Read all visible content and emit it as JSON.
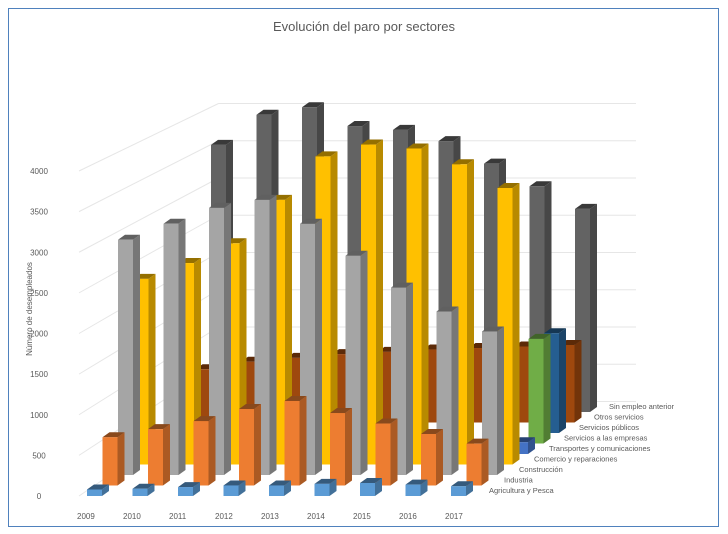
{
  "chart_data": {
    "type": "bar",
    "subtype": "3d-column-depth",
    "title": "Evolución del paro por sectores",
    "ylabel": "Número de desempleados",
    "xlabel": "",
    "ylim": [
      0,
      4000
    ],
    "yticks": [
      0,
      500,
      1000,
      1500,
      2000,
      2500,
      3000,
      3500,
      4000
    ],
    "categories": [
      "2009",
      "2010",
      "2011",
      "2012",
      "2013",
      "2014",
      "2015",
      "2016",
      "2017"
    ],
    "grid": true,
    "series": [
      {
        "name": "Agricultura y Pesca",
        "color": "#5b9bd5",
        "values": [
          80,
          90,
          110,
          130,
          130,
          150,
          160,
          140,
          120
        ]
      },
      {
        "name": "Industria",
        "color": "#ed7d31",
        "values": [
          600,
          700,
          800,
          950,
          1050,
          900,
          770,
          640,
          520
        ]
      },
      {
        "name": "Construcción",
        "color": "#a5a5a5",
        "values": [
          2950,
          3150,
          3350,
          3450,
          3150,
          2750,
          2350,
          2050,
          1800
        ]
      },
      {
        "name": "Comercio y reparaciones",
        "color": "#ffc000",
        "values": [
          2350,
          2550,
          2800,
          3350,
          3900,
          4050,
          4000,
          3800,
          3500
        ]
      },
      {
        "name": "Transportes y comunicaciones",
        "color": "#4472c4",
        "values": [
          0,
          0,
          0,
          0,
          0,
          0,
          0,
          0,
          150
        ]
      },
      {
        "name": "Servicios a las empresas",
        "color": "#70ad47",
        "values": [
          0,
          0,
          0,
          0,
          0,
          0,
          0,
          0,
          1350
        ]
      },
      {
        "name": "Servicios públicos",
        "color": "#255e91",
        "values": [
          0,
          0,
          0,
          0,
          0,
          0,
          0,
          0,
          1300
        ]
      },
      {
        "name": "Otros servicios",
        "color": "#9e480e",
        "values": [
          700,
          800,
          850,
          900,
          930,
          960,
          980,
          1000,
          1020
        ]
      },
      {
        "name": "Sin empleo anterior",
        "color": "#636363",
        "values": [
          3550,
          3950,
          4050,
          3800,
          3750,
          3600,
          3300,
          3000,
          2700
        ]
      }
    ]
  }
}
